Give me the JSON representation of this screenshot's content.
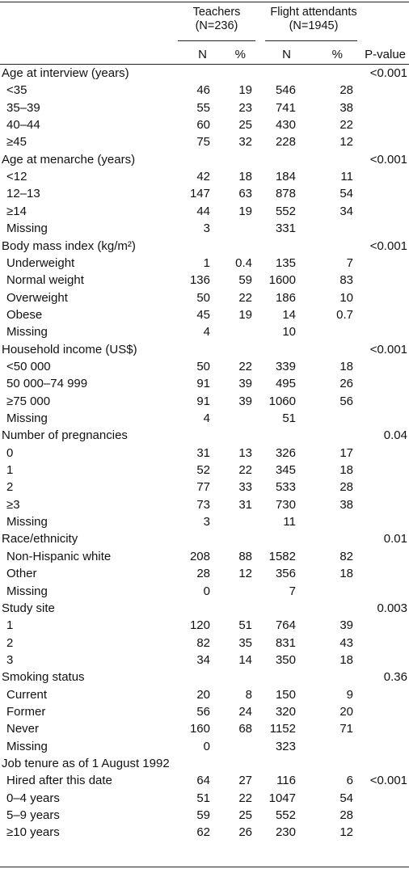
{
  "header": {
    "group1": {
      "name": "Teachers",
      "n": "(N=236)"
    },
    "group2": {
      "name": "Flight attendants",
      "n": "(N=1945)"
    },
    "col_n1": "N",
    "col_pct1": "%",
    "col_n2": "N",
    "col_pct2": "%",
    "col_p": "P-value"
  },
  "rows": [
    {
      "label": "Age at interview (years)",
      "n1": "",
      "p1": "",
      "n2": "",
      "p2": "",
      "pv": "<0.001",
      "sub": false
    },
    {
      "label": "<35",
      "n1": "46",
      "p1": "19",
      "n2": "546",
      "p2": "28",
      "pv": "",
      "sub": true
    },
    {
      "label": "35–39",
      "n1": "55",
      "p1": "23",
      "n2": "741",
      "p2": "38",
      "pv": "",
      "sub": true
    },
    {
      "label": "40–44",
      "n1": "60",
      "p1": "25",
      "n2": "430",
      "p2": "22",
      "pv": "",
      "sub": true
    },
    {
      "label": "≥45",
      "n1": "75",
      "p1": "32",
      "n2": "228",
      "p2": "12",
      "pv": "",
      "sub": true
    },
    {
      "label": "Age at menarche (years)",
      "n1": "",
      "p1": "",
      "n2": "",
      "p2": "",
      "pv": "<0.001",
      "sub": false
    },
    {
      "label": "<12",
      "n1": "42",
      "p1": "18",
      "n2": "184",
      "p2": "11",
      "pv": "",
      "sub": true
    },
    {
      "label": "12–13",
      "n1": "147",
      "p1": "63",
      "n2": "878",
      "p2": "54",
      "pv": "",
      "sub": true
    },
    {
      "label": "≥14",
      "n1": "44",
      "p1": "19",
      "n2": "552",
      "p2": "34",
      "pv": "",
      "sub": true
    },
    {
      "label": "Missing",
      "n1": "3",
      "p1": "",
      "n2": "331",
      "p2": "",
      "pv": "",
      "sub": true
    },
    {
      "label": "Body mass index (kg/m²)",
      "n1": "",
      "p1": "",
      "n2": "",
      "p2": "",
      "pv": "<0.001",
      "sub": false
    },
    {
      "label": "Underweight",
      "n1": "1",
      "p1": "0.4",
      "n2": "135",
      "p2": "7",
      "pv": "",
      "sub": true
    },
    {
      "label": "Normal weight",
      "n1": "136",
      "p1": "59",
      "n2": "1600",
      "p2": "83",
      "pv": "",
      "sub": true
    },
    {
      "label": "Overweight",
      "n1": "50",
      "p1": "22",
      "n2": "186",
      "p2": "10",
      "pv": "",
      "sub": true
    },
    {
      "label": "Obese",
      "n1": "45",
      "p1": "19",
      "n2": "14",
      "p2": "0.7",
      "pv": "",
      "sub": true
    },
    {
      "label": "Missing",
      "n1": "4",
      "p1": "",
      "n2": "10",
      "p2": "",
      "pv": "",
      "sub": true
    },
    {
      "label": "Household income (US$)",
      "n1": "",
      "p1": "",
      "n2": "",
      "p2": "",
      "pv": "<0.001",
      "sub": false
    },
    {
      "label": "<50 000",
      "n1": "50",
      "p1": "22",
      "n2": "339",
      "p2": "18",
      "pv": "",
      "sub": true
    },
    {
      "label": "50 000–74 999",
      "n1": "91",
      "p1": "39",
      "n2": "495",
      "p2": "26",
      "pv": "",
      "sub": true
    },
    {
      "label": "≥75 000",
      "n1": "91",
      "p1": "39",
      "n2": "1060",
      "p2": "56",
      "pv": "",
      "sub": true
    },
    {
      "label": "Missing",
      "n1": "4",
      "p1": "",
      "n2": "51",
      "p2": "",
      "pv": "",
      "sub": true
    },
    {
      "label": "Number of pregnancies",
      "n1": "",
      "p1": "",
      "n2": "",
      "p2": "",
      "pv": "0.04",
      "sub": false
    },
    {
      "label": "0",
      "n1": "31",
      "p1": "13",
      "n2": "326",
      "p2": "17",
      "pv": "",
      "sub": true
    },
    {
      "label": "1",
      "n1": "52",
      "p1": "22",
      "n2": "345",
      "p2": "18",
      "pv": "",
      "sub": true
    },
    {
      "label": "2",
      "n1": "77",
      "p1": "33",
      "n2": "533",
      "p2": "28",
      "pv": "",
      "sub": true
    },
    {
      "label": "≥3",
      "n1": "73",
      "p1": "31",
      "n2": "730",
      "p2": "38",
      "pv": "",
      "sub": true
    },
    {
      "label": "Missing",
      "n1": "3",
      "p1": "",
      "n2": "11",
      "p2": "",
      "pv": "",
      "sub": true
    },
    {
      "label": "Race/ethnicity",
      "n1": "",
      "p1": "",
      "n2": "",
      "p2": "",
      "pv": "0.01",
      "sub": false
    },
    {
      "label": "Non-Hispanic white",
      "n1": "208",
      "p1": "88",
      "n2": "1582",
      "p2": "82",
      "pv": "",
      "sub": true
    },
    {
      "label": "Other",
      "n1": "28",
      "p1": "12",
      "n2": "356",
      "p2": "18",
      "pv": "",
      "sub": true
    },
    {
      "label": "Missing",
      "n1": "0",
      "p1": "",
      "n2": "7",
      "p2": "",
      "pv": "",
      "sub": true
    },
    {
      "label": "Study site",
      "n1": "",
      "p1": "",
      "n2": "",
      "p2": "",
      "pv": "0.003",
      "sub": false
    },
    {
      "label": "1",
      "n1": "120",
      "p1": "51",
      "n2": "764",
      "p2": "39",
      "pv": "",
      "sub": true
    },
    {
      "label": "2",
      "n1": "82",
      "p1": "35",
      "n2": "831",
      "p2": "43",
      "pv": "",
      "sub": true
    },
    {
      "label": "3",
      "n1": "34",
      "p1": "14",
      "n2": "350",
      "p2": "18",
      "pv": "",
      "sub": true
    },
    {
      "label": "Smoking status",
      "n1": "",
      "p1": "",
      "n2": "",
      "p2": "",
      "pv": "0.36",
      "sub": false
    },
    {
      "label": "Current",
      "n1": "20",
      "p1": "8",
      "n2": "150",
      "p2": "9",
      "pv": "",
      "sub": true
    },
    {
      "label": "Former",
      "n1": "56",
      "p1": "24",
      "n2": "320",
      "p2": "20",
      "pv": "",
      "sub": true
    },
    {
      "label": "Never",
      "n1": "160",
      "p1": "68",
      "n2": "1152",
      "p2": "71",
      "pv": "",
      "sub": true
    },
    {
      "label": "Missing",
      "n1": "0",
      "p1": "",
      "n2": "323",
      "p2": "",
      "pv": "",
      "sub": true
    },
    {
      "label": "Job tenure as of 1 August 1992",
      "n1": "",
      "p1": "",
      "n2": "",
      "p2": "",
      "pv": "",
      "sub": false
    },
    {
      "label": "Hired after this date",
      "n1": "64",
      "p1": "27",
      "n2": "116",
      "p2": "6",
      "pv": "<0.001",
      "sub": true
    },
    {
      "label": "0–4 years",
      "n1": "51",
      "p1": "22",
      "n2": "1047",
      "p2": "54",
      "pv": "",
      "sub": true
    },
    {
      "label": "5–9 years",
      "n1": "59",
      "p1": "25",
      "n2": "552",
      "p2": "28",
      "pv": "",
      "sub": true
    },
    {
      "label": "≥10 years",
      "n1": "62",
      "p1": "26",
      "n2": "230",
      "p2": "12",
      "pv": "",
      "sub": true
    }
  ]
}
